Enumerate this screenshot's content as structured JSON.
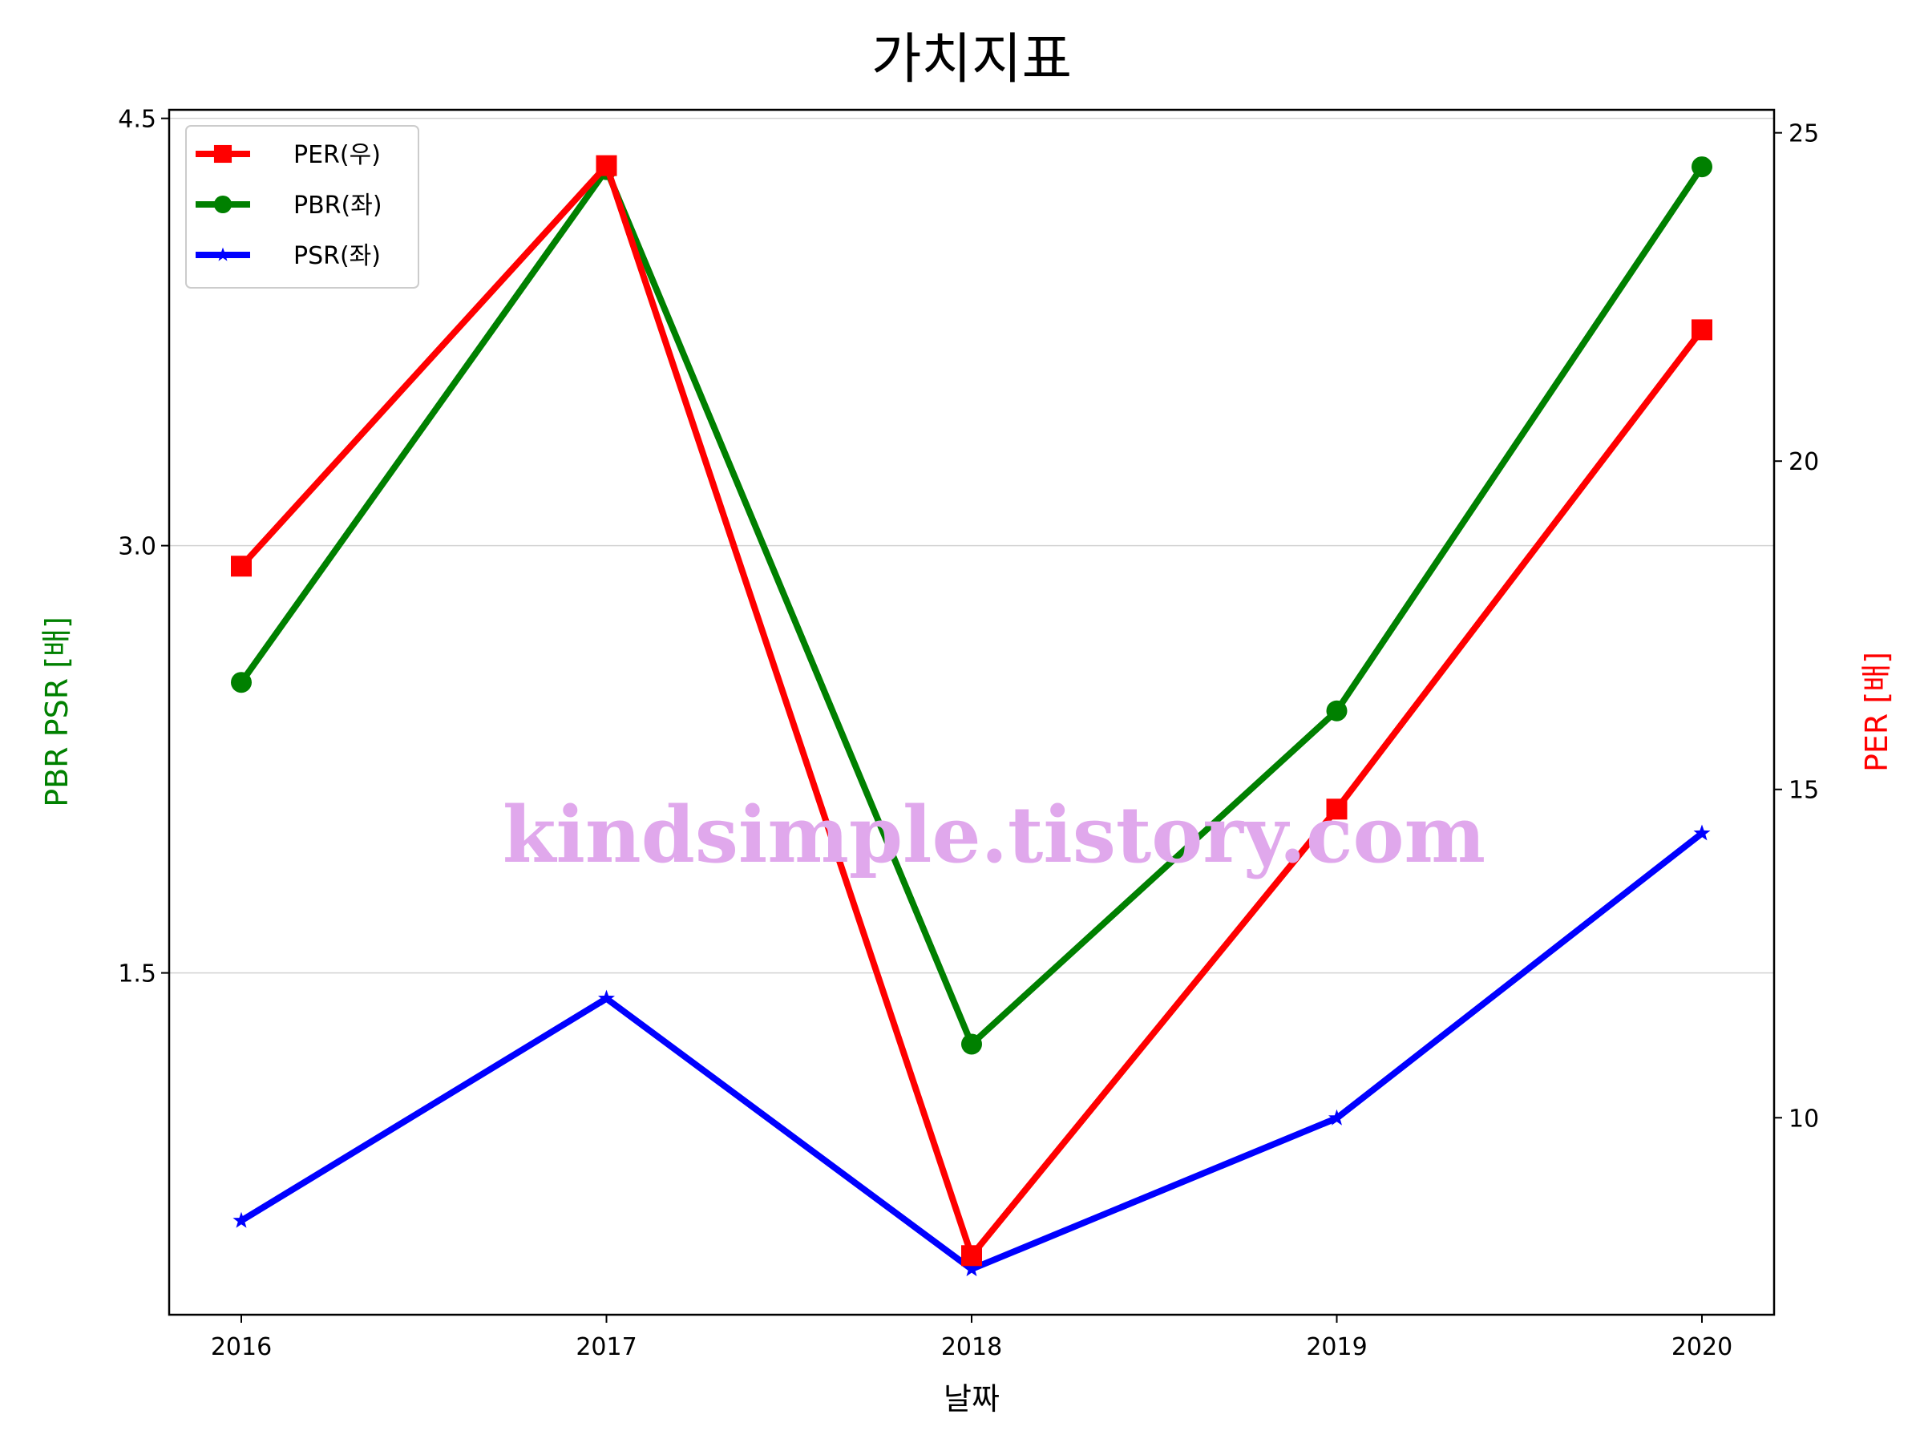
{
  "chart_data": {
    "type": "line",
    "title": "가치지표",
    "xlabel": "날짜",
    "ylabel_left": "PBR PSR [배]",
    "ylabel_right": "PER [배]",
    "categories": [
      "2016",
      "2017",
      "2018",
      "2019",
      "2020"
    ],
    "ylim_left": [
      0.3,
      4.53
    ],
    "ylim_right": [
      7.0,
      25.35
    ],
    "yticks_left": [
      1.5,
      3.0,
      4.5
    ],
    "yticks_right": [
      10,
      15,
      20,
      25
    ],
    "ytick_labels_left": [
      "1.5",
      "3.0",
      "4.5"
    ],
    "ytick_labels_right": [
      "10",
      "15",
      "20",
      "25"
    ],
    "grid": "horizontal, left axis",
    "legend_position": "top-left",
    "series": [
      {
        "name": "PER(우)",
        "axis": "right",
        "color": "#ff0000",
        "marker": "square",
        "values": [
          18.4,
          24.5,
          7.9,
          14.7,
          22.0
        ]
      },
      {
        "name": "PBR(좌)",
        "axis": "left",
        "color": "#008000",
        "marker": "circle",
        "values": [
          2.52,
          4.32,
          1.25,
          2.42,
          4.33
        ]
      },
      {
        "name": "PSR(좌)",
        "axis": "left",
        "color": "#0000ff",
        "marker": "star",
        "values": [
          0.63,
          1.41,
          0.46,
          0.99,
          1.99
        ]
      }
    ],
    "watermark": "kindsimple.tistory.com"
  }
}
